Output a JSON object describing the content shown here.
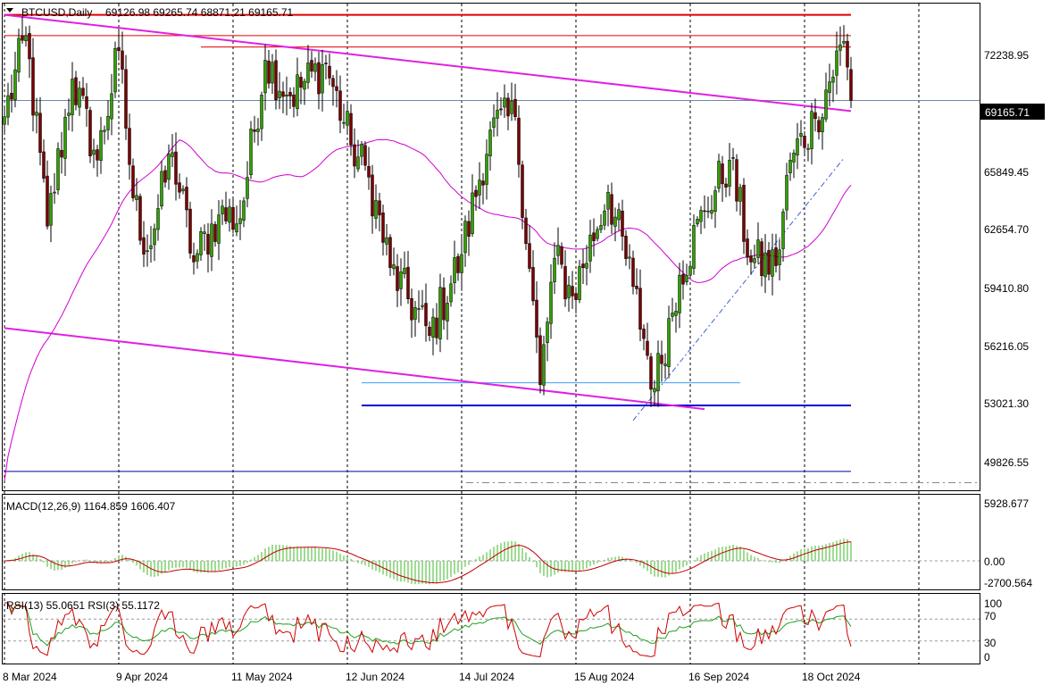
{
  "header": {
    "symbol": "BTCUSD,Daily",
    "ohlc": "69126.98 69265.74 68871.21 69165.71"
  },
  "price_panel": {
    "ticks": [
      "72238.95",
      "69165.71",
      "65849.45",
      "62654.70",
      "59410.80",
      "56216.05",
      "53021.30",
      "49826.55"
    ],
    "current_price_label": "69165.71",
    "current_price": 69165.71
  },
  "macd_panel": {
    "label": "MACD(12,26,9) 1164.859 1606.407",
    "ticks": [
      "5928.677",
      "0.00",
      "-2700.564"
    ]
  },
  "rsi_panel": {
    "label": "RSI(13) 55.0651  RSI(3) 55.1172",
    "ticks": [
      "100",
      "70",
      "30",
      "0"
    ]
  },
  "date_axis": {
    "labels": [
      "8 Mar 2024",
      "9 Apr 2024",
      "11 May 2024",
      "12 Jun 2024",
      "14 Jul 2024",
      "15 Aug 2024",
      "16 Sep 2024",
      "18 Oct 2024"
    ]
  },
  "colors": {
    "bull": "#32a000",
    "bear": "#7a0000",
    "magenta": "#e020e0",
    "red_line": "#e00000",
    "blue_line": "#0000d0",
    "macd_hist": "#7fd070",
    "macd_signal": "#c00000",
    "rsi13": "#20a020",
    "rsi3": "#d00000",
    "ma": "#d000d0"
  },
  "chart_data": {
    "type": "candlestick",
    "symbol": "BTCUSD",
    "timeframe": "Daily",
    "x_start": "2024-03-08",
    "x_end": "2024-10-31",
    "ylim": [
      48500,
      74300
    ],
    "last_bar": {
      "open": 69126.98,
      "high": 69265.74,
      "low": 68871.21,
      "close": 69165.71
    },
    "close_anchors": [
      [
        "2024-03-08",
        68300
      ],
      [
        "2024-03-14",
        72600
      ],
      [
        "2024-03-20",
        62500
      ],
      [
        "2024-03-27",
        70300
      ],
      [
        "2024-04-03",
        66000
      ],
      [
        "2024-04-09",
        71800
      ],
      [
        "2024-04-13",
        64000
      ],
      [
        "2024-04-17",
        61200
      ],
      [
        "2024-04-24",
        66400
      ],
      [
        "2024-04-30",
        60600
      ],
      [
        "2024-05-07",
        63100
      ],
      [
        "2024-05-13",
        62900
      ],
      [
        "2024-05-20",
        71300
      ],
      [
        "2024-05-27",
        69400
      ],
      [
        "2024-06-06",
        71100
      ],
      [
        "2024-06-13",
        66800
      ],
      [
        "2024-06-18",
        65100
      ],
      [
        "2024-06-24",
        60300
      ],
      [
        "2024-07-05",
        56700
      ],
      [
        "2024-07-14",
        61000
      ],
      [
        "2024-07-22",
        67600
      ],
      [
        "2024-07-29",
        68300
      ],
      [
        "2024-08-05",
        54100
      ],
      [
        "2024-08-09",
        60800
      ],
      [
        "2024-08-14",
        58800
      ],
      [
        "2024-08-24",
        64300
      ],
      [
        "2024-08-31",
        59300
      ],
      [
        "2024-09-06",
        53900
      ],
      [
        "2024-09-13",
        59900
      ],
      [
        "2024-09-20",
        63300
      ],
      [
        "2024-09-27",
        66000
      ],
      [
        "2024-10-03",
        60600
      ],
      [
        "2024-10-10",
        60400
      ],
      [
        "2024-10-14",
        66000
      ],
      [
        "2024-10-21",
        68200
      ],
      [
        "2024-10-29",
        72300
      ],
      [
        "2024-10-31",
        69165.71
      ]
    ],
    "lines": [
      {
        "name": "resistance-72600",
        "color": "#e00000",
        "x1": "2024-03-08",
        "y1": 72600,
        "x2": "2024-10-31",
        "y2": 72600
      },
      {
        "name": "resistance-72000",
        "color": "#e00000",
        "x1": "2024-05-02",
        "y1": 72000,
        "x2": "2024-10-31",
        "y2": 72000
      },
      {
        "name": "resistance-73700",
        "color": "#e00000",
        "x1": "2024-03-08",
        "y1": 73700,
        "x2": "2024-10-31",
        "y2": 73700
      },
      {
        "name": "support-53000",
        "color": "#0000d0",
        "x1": "2024-06-16",
        "y1": 53000,
        "x2": "2024-10-31",
        "y2": 53000
      },
      {
        "name": "support-54200",
        "color": "#3aa0ff",
        "x1": "2024-06-16",
        "y1": 54200,
        "x2": "2024-09-30",
        "y2": 54200
      },
      {
        "name": "support-49500",
        "color": "#0000a0",
        "x1": "2024-03-08",
        "y1": 49500,
        "x2": "2024-10-31",
        "y2": 49500
      },
      {
        "name": "channel-top",
        "color": "#e020e0",
        "x1": "2024-03-08",
        "y1": 73700,
        "x2": "2024-10-31",
        "y2": 68600
      },
      {
        "name": "channel-bottom",
        "color": "#e020e0",
        "x1": "2024-03-08",
        "y1": 57100,
        "x2": "2024-09-20",
        "y2": 52800
      },
      {
        "name": "ascending-trend",
        "color": "#4060d0",
        "x1": "2024-08-31",
        "y1": 52200,
        "x2": "2024-10-29",
        "y2": 66100
      }
    ]
  }
}
